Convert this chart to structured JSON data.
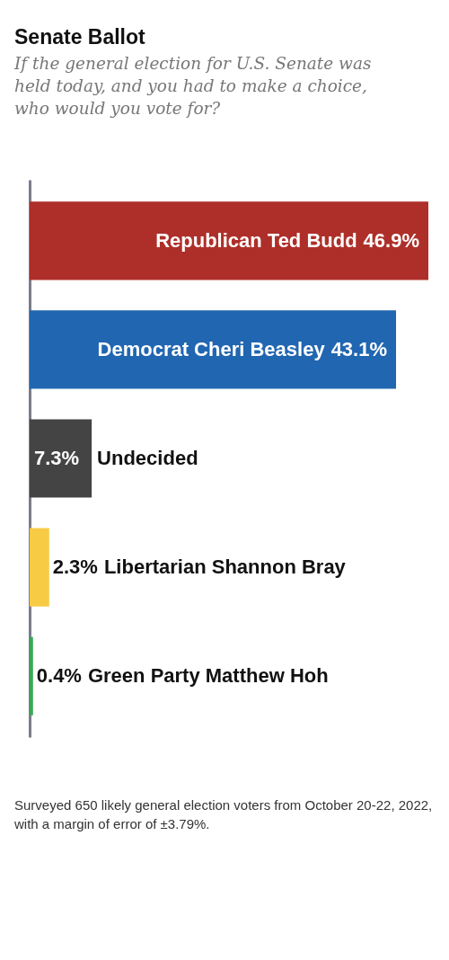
{
  "chart_data": {
    "type": "bar",
    "orientation": "horizontal",
    "title": "Senate Ballot",
    "subtitle": "If the general election for U.S. Senate was held today, and you had to make a choice, who would you vote for?",
    "categories": [
      "Republican Ted Budd",
      "Democrat Cheri Beasley",
      "Undecided",
      "Libertarian Shannon Bray",
      "Green Party Matthew Hoh"
    ],
    "values": [
      46.9,
      43.1,
      7.3,
      2.3,
      0.4
    ],
    "colors": [
      "#ae2f29",
      "#2166b1",
      "#444444",
      "#f8cb45",
      "#3aa856"
    ],
    "value_labels": [
      "46.9%",
      "43.1%",
      "7.3%",
      "2.3%",
      "0.4%"
    ],
    "grid": false,
    "annotations": [
      "Surveyed 650 likely general election voters from October 20-22, 2022, with a margin of error of ±3.79%."
    ]
  }
}
